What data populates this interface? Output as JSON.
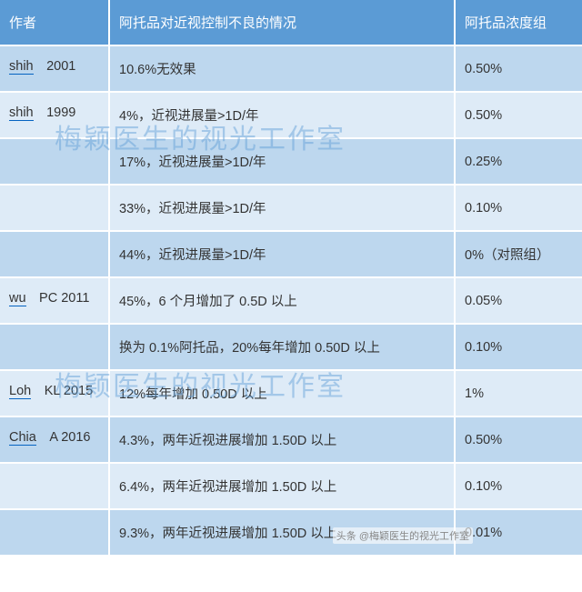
{
  "colors": {
    "header_bg": "#5b9bd5",
    "header_text": "#ffffff",
    "row_dark": "#bdd7ee",
    "row_light": "#deebf7",
    "author_link": "#0563c1",
    "cell_text": "#333333",
    "watermark": "rgba(91,155,213,0.45)"
  },
  "typography": {
    "header_fontsize": 15,
    "cell_fontsize": 14.5,
    "watermark_fontsize": 30
  },
  "headers": {
    "col1": "作者",
    "col2": "阿托品对近视控制不良的情况",
    "col3": "阿托品浓度组"
  },
  "rows": [
    {
      "shade": "dark",
      "author_name": "shih",
      "author_year": "2001",
      "desc": "10.6%无效果",
      "conc": "0.50%"
    },
    {
      "shade": "light",
      "author_name": "shih",
      "author_year": "1999",
      "desc": "4%，近视进展量>1D/年",
      "conc": "0.50%"
    },
    {
      "shade": "dark",
      "author_name": "",
      "author_year": "",
      "desc": "17%，近视进展量>1D/年",
      "conc": "0.25%"
    },
    {
      "shade": "light",
      "author_name": "",
      "author_year": "",
      "desc": "33%，近视进展量>1D/年",
      "conc": "0.10%"
    },
    {
      "shade": "dark",
      "author_name": "",
      "author_year": "",
      "desc": "44%，近视进展量>1D/年",
      "conc": "0%（对照组）"
    },
    {
      "shade": "light",
      "author_name": "wu",
      "author_year": "PC 2011",
      "desc": "45%，6 个月增加了 0.5D 以上",
      "conc": "0.05%"
    },
    {
      "shade": "dark",
      "author_name": "",
      "author_year": "",
      "desc": "换为 0.1%阿托品，20%每年增加 0.50D 以上",
      "conc": "0.10%"
    },
    {
      "shade": "light",
      "author_name": "Loh",
      "author_year": "KL 2015",
      "desc": "12%每年增加 0.50D 以上",
      "conc": "1%"
    },
    {
      "shade": "dark",
      "author_name": "Chia",
      "author_year": "A 2016",
      "desc": "4.3%，两年近视进展增加 1.50D 以上",
      "conc": "0.50%"
    },
    {
      "shade": "light",
      "author_name": "",
      "author_year": "",
      "desc": "6.4%，两年近视进展增加 1.50D 以上",
      "conc": "0.10%"
    },
    {
      "shade": "dark",
      "author_name": "",
      "author_year": "",
      "desc": "9.3%，两年近视进展增加 1.50D 以上",
      "conc": "0.01%"
    }
  ],
  "watermark_text": "梅颖医生的视光工作室",
  "footer_badge": "头条 @梅颖医生的视光工作室"
}
